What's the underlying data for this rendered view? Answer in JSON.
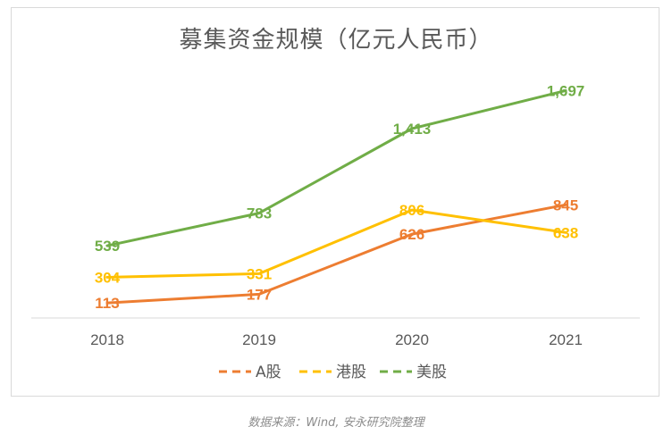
{
  "chart_data": {
    "type": "line",
    "title": "募集资金规模（亿元人民币）",
    "categories": [
      "2018",
      "2019",
      "2020",
      "2021"
    ],
    "series": [
      {
        "name": "A股",
        "color": "#ed7d31",
        "values": [
          113,
          177,
          626,
          845
        ]
      },
      {
        "name": "港股",
        "color": "#ffc000",
        "values": [
          304,
          331,
          806,
          638
        ]
      },
      {
        "name": "美股",
        "color": "#70ad47",
        "values": [
          539,
          783,
          1413,
          1697
        ]
      }
    ],
    "data_labels": [
      [
        "113",
        "177",
        "626",
        "845"
      ],
      [
        "304",
        "331",
        "806",
        "638"
      ],
      [
        "539",
        "783",
        "1,413",
        "1,697"
      ]
    ],
    "ylim": [
      0,
      1900
    ],
    "grid": false,
    "legend_position": "bottom",
    "line_style": "solid with dashed legend keys"
  },
  "source_note": "数据来源：Wind, 安永研究院整理"
}
